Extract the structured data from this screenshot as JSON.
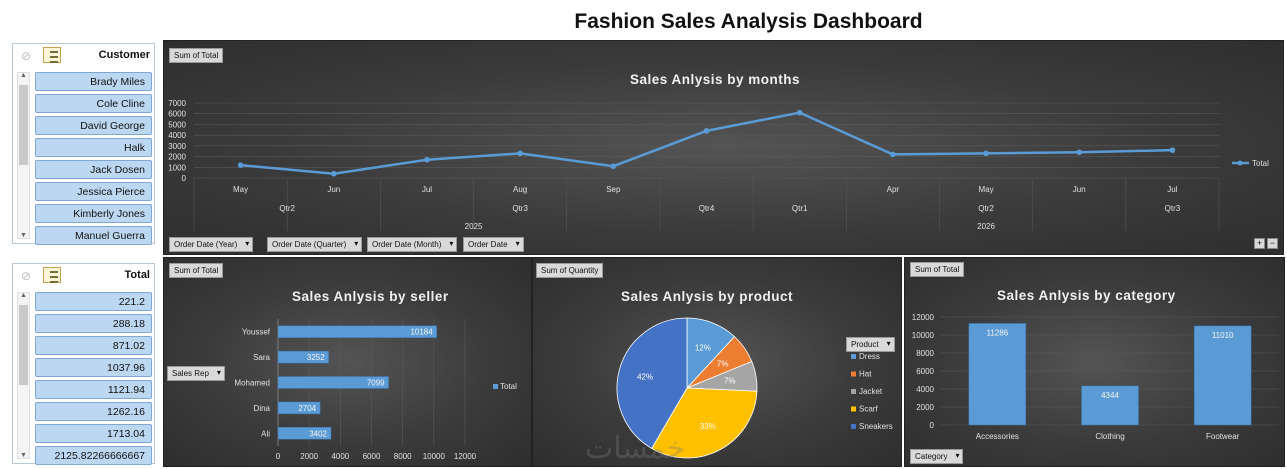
{
  "title": "Fashion Sales Analysis Dashboard",
  "slicers": {
    "customer": {
      "label": "Customer",
      "items": [
        "Brady Miles",
        "Cole Cline",
        "David George",
        "Halk",
        "Jack Dosen",
        "Jessica Pierce",
        "Kimberly Jones",
        "Manuel Guerra"
      ]
    },
    "total": {
      "label": "Total",
      "items": [
        "221.2",
        "288.18",
        "871.02",
        "1037.96",
        "1121.94",
        "1262.16",
        "1713.04",
        "2125.82266666667"
      ]
    }
  },
  "line_panel": {
    "value_field": "Sum of Total",
    "title": "Sales Anlysis by months",
    "field_buttons": [
      "Order Date (Year)",
      "Order Date (Quarter)",
      "Order Date (Month)",
      "Order Date"
    ],
    "quarter_labels": [
      "Qtr2",
      "Qtr3",
      "Qtr4",
      "Qtr1",
      "Qtr2",
      "Qtr3"
    ],
    "year_labels": [
      "2025",
      "2026"
    ],
    "legend": "Total",
    "plus": "+",
    "minus": "−"
  },
  "bar_panel": {
    "value_field": "Sum of Total",
    "title": "Sales Anlysis by seller",
    "row_field": "Sales Rep",
    "legend": "Total"
  },
  "pie_panel": {
    "value_field": "Sum of Quantity",
    "title": "Sales Anlysis by product",
    "legend_field": "Product"
  },
  "col_panel": {
    "value_field": "Sum of Total",
    "title": "Sales Anlysis by category",
    "axis_field": "Category"
  },
  "watermark": "خمسات",
  "chart_data": [
    {
      "type": "line",
      "title": "Sales Anlysis by months",
      "categories": [
        "May",
        "Jun",
        "Jul",
        "Aug",
        "Sep",
        "",
        "",
        "Apr",
        "May",
        "Jun",
        "Jul"
      ],
      "values": [
        1200,
        400,
        1700,
        2300,
        1100,
        4400,
        6100,
        2200,
        2300,
        2400,
        2600
      ],
      "yticks": [
        0,
        1000,
        2000,
        3000,
        4000,
        5000,
        6000,
        7000
      ],
      "ylim": [
        0,
        7000
      ],
      "series_name": "Total",
      "legend": "right",
      "grid": true,
      "color": "#5b9bd5"
    },
    {
      "type": "bar",
      "orientation": "horizontal",
      "title": "Sales Anlysis by seller",
      "categories": [
        "Youssef",
        "Sara",
        "Mohamed",
        "Dina",
        "Ali"
      ],
      "values": [
        10184,
        3252,
        7099,
        2704,
        3402
      ],
      "xticks": [
        0,
        2000,
        4000,
        6000,
        8000,
        10000,
        12000
      ],
      "xlim": [
        0,
        12000
      ],
      "series_name": "Total",
      "legend": "right",
      "grid": true,
      "color": "#5b9bd5"
    },
    {
      "type": "pie",
      "title": "Sales Anlysis by product",
      "categories": [
        "Dress",
        "Hat",
        "Jacket",
        "Scarf",
        "Sneakers"
      ],
      "values": [
        12,
        7,
        7,
        33,
        42
      ],
      "labels": [
        "12%",
        "7%",
        "7%",
        "33%",
        "42%"
      ],
      "colors": [
        "#5b9bd5",
        "#ed7d31",
        "#a5a5a5",
        "#ffc000",
        "#4472c4"
      ],
      "legend": "right"
    },
    {
      "type": "bar",
      "orientation": "vertical",
      "title": "Sales Anlysis by category",
      "categories": [
        "Accessories",
        "Clothing",
        "Footwear"
      ],
      "values": [
        11286,
        4344,
        11010
      ],
      "yticks": [
        0,
        2000,
        4000,
        6000,
        8000,
        10000,
        12000
      ],
      "ylim": [
        0,
        12000
      ],
      "grid": true,
      "color": "#5b9bd5"
    }
  ]
}
